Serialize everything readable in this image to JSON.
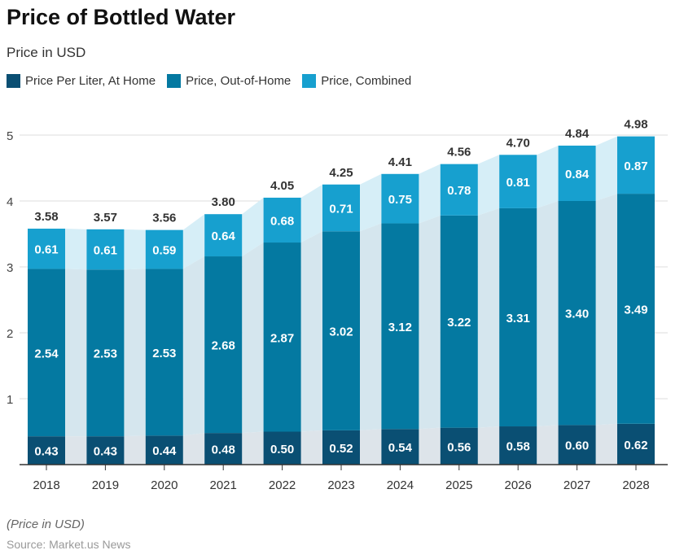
{
  "title": "Price of Bottled Water",
  "subtitle": "Price in USD",
  "note": "(Price in USD)",
  "source": "Source: Market.us News",
  "chart_data": {
    "type": "bar",
    "stacked": true,
    "categories": [
      "2018",
      "2019",
      "2020",
      "2021",
      "2022",
      "2023",
      "2024",
      "2025",
      "2026",
      "2027",
      "2028"
    ],
    "series": [
      {
        "name": "Price Per Liter, At Home",
        "color": "#0a4f73",
        "values": [
          0.43,
          0.43,
          0.44,
          0.48,
          0.5,
          0.52,
          0.54,
          0.56,
          0.58,
          0.6,
          0.62
        ]
      },
      {
        "name": "Price, Out-of-Home",
        "color": "#0479a1",
        "values": [
          2.54,
          2.53,
          2.53,
          2.68,
          2.87,
          3.02,
          3.12,
          3.22,
          3.31,
          3.4,
          3.49
        ]
      },
      {
        "name": "Price, Combined",
        "color": "#17a0cf",
        "values": [
          0.61,
          0.61,
          0.59,
          0.64,
          0.68,
          0.71,
          0.75,
          0.78,
          0.81,
          0.84,
          0.87
        ]
      }
    ],
    "totals": [
      "3.58",
      "3.57",
      "3.56",
      "3.80",
      "4.05",
      "4.25",
      "4.41",
      "4.56",
      "4.70",
      "4.84",
      "4.98"
    ],
    "ylim": [
      0,
      5
    ],
    "yticks": [
      1,
      2,
      3,
      4,
      5
    ],
    "grid": true,
    "legend": "top-left",
    "xlabel": "",
    "ylabel": ""
  }
}
